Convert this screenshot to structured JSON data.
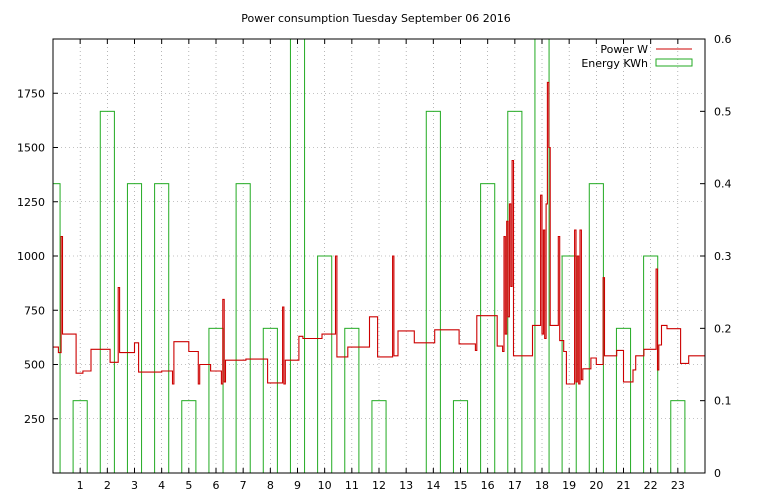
{
  "chart_data": {
    "type": "line",
    "title": "Power consumption Tuesday September 06 2016",
    "grid": true,
    "legend_position": "top-right",
    "x_axis": {
      "min": 0,
      "max": 24,
      "ticks": [
        1,
        2,
        3,
        4,
        5,
        6,
        7,
        8,
        9,
        10,
        11,
        12,
        13,
        14,
        15,
        16,
        17,
        18,
        19,
        20,
        21,
        22,
        23
      ]
    },
    "y_axis_left": {
      "min": 0,
      "max": 2000,
      "ticks": [
        250,
        500,
        750,
        1000,
        1250,
        1500,
        1750
      ]
    },
    "y_axis_right": {
      "min": 0,
      "max": 0.6,
      "ticks": [
        "0",
        "0.1",
        "0.2",
        "0.3",
        "0.4",
        "0.5",
        "0.6"
      ]
    },
    "colors": {
      "power": "#cc0000",
      "energy": "#22aa22",
      "grid": "#888888"
    },
    "series": [
      {
        "name": "Power W",
        "axis": "left",
        "style": "steps",
        "points": [
          [
            0.0,
            580
          ],
          [
            0.2,
            555
          ],
          [
            0.3,
            1090
          ],
          [
            0.35,
            640
          ],
          [
            0.85,
            460
          ],
          [
            1.1,
            470
          ],
          [
            1.4,
            570
          ],
          [
            2.1,
            510
          ],
          [
            2.4,
            855
          ],
          [
            2.45,
            555
          ],
          [
            3.0,
            600
          ],
          [
            3.15,
            465
          ],
          [
            4.0,
            470
          ],
          [
            4.4,
            410
          ],
          [
            4.45,
            605
          ],
          [
            5.0,
            560
          ],
          [
            5.35,
            410
          ],
          [
            5.4,
            500
          ],
          [
            5.8,
            470
          ],
          [
            6.2,
            410
          ],
          [
            6.25,
            800
          ],
          [
            6.3,
            420
          ],
          [
            6.35,
            520
          ],
          [
            7.1,
            525
          ],
          [
            7.9,
            415
          ],
          [
            8.45,
            765
          ],
          [
            8.5,
            410
          ],
          [
            8.55,
            520
          ],
          [
            9.05,
            630
          ],
          [
            9.2,
            620
          ],
          [
            9.9,
            640
          ],
          [
            10.4,
            1000
          ],
          [
            10.45,
            535
          ],
          [
            10.85,
            580
          ],
          [
            11.65,
            720
          ],
          [
            11.95,
            535
          ],
          [
            12.5,
            1000
          ],
          [
            12.55,
            540
          ],
          [
            12.7,
            655
          ],
          [
            13.3,
            600
          ],
          [
            14.05,
            660
          ],
          [
            14.95,
            595
          ],
          [
            15.55,
            565
          ],
          [
            15.6,
            725
          ],
          [
            16.35,
            585
          ],
          [
            16.55,
            560
          ],
          [
            16.6,
            1090
          ],
          [
            16.65,
            640
          ],
          [
            16.7,
            1160
          ],
          [
            16.75,
            720
          ],
          [
            16.8,
            1240
          ],
          [
            16.85,
            860
          ],
          [
            16.9,
            1440
          ],
          [
            16.95,
            540
          ],
          [
            17.65,
            680
          ],
          [
            17.95,
            1280
          ],
          [
            18.0,
            640
          ],
          [
            18.05,
            1120
          ],
          [
            18.1,
            620
          ],
          [
            18.15,
            1240
          ],
          [
            18.2,
            1800
          ],
          [
            18.25,
            1500
          ],
          [
            18.3,
            680
          ],
          [
            18.6,
            1090
          ],
          [
            18.65,
            610
          ],
          [
            18.8,
            560
          ],
          [
            18.9,
            410
          ],
          [
            19.2,
            1120
          ],
          [
            19.25,
            420
          ],
          [
            19.3,
            1000
          ],
          [
            19.35,
            410
          ],
          [
            19.4,
            1120
          ],
          [
            19.45,
            430
          ],
          [
            19.5,
            480
          ],
          [
            19.8,
            530
          ],
          [
            20.0,
            500
          ],
          [
            20.25,
            900
          ],
          [
            20.3,
            540
          ],
          [
            20.75,
            565
          ],
          [
            21.0,
            420
          ],
          [
            21.35,
            475
          ],
          [
            21.45,
            540
          ],
          [
            21.75,
            570
          ],
          [
            22.2,
            940
          ],
          [
            22.25,
            475
          ],
          [
            22.3,
            590
          ],
          [
            22.4,
            680
          ],
          [
            22.6,
            665
          ],
          [
            23.1,
            505
          ],
          [
            23.4,
            540
          ],
          [
            24.0,
            540
          ]
        ]
      },
      {
        "name": "Energy KWh",
        "axis": "right",
        "style": "bars",
        "hours": [
          0,
          1,
          2,
          3,
          4,
          5,
          6,
          7,
          8,
          9,
          10,
          11,
          12,
          13,
          14,
          15,
          16,
          17,
          18,
          19,
          20,
          21,
          22,
          23
        ],
        "values": [
          0.4,
          0.1,
          0.5,
          0.4,
          0.4,
          0.1,
          0.2,
          0.4,
          0.2,
          0.6,
          0.3,
          0.2,
          0.1,
          0.0,
          0.5,
          0.1,
          0.4,
          0.5,
          0.6,
          0.3,
          0.4,
          0.2,
          0.3,
          0.1
        ]
      }
    ]
  }
}
